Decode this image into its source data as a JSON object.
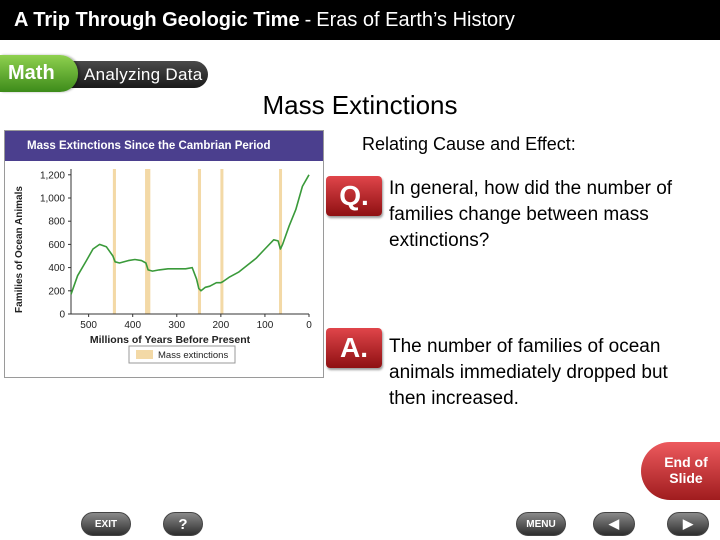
{
  "header": {
    "title_bold": "A Trip Through Geologic Time",
    "separator": "-",
    "title_rest": "Eras of Earth’s History"
  },
  "banner": {
    "math": "Math",
    "analyzing": "Analyzing Data"
  },
  "slide_title": "Mass Extinctions",
  "chart_data": {
    "type": "line",
    "title": "Mass Extinctions Since the Cambrian Period",
    "xlabel": "Millions of Years Before Present",
    "ylabel": "Families of Ocean Animals",
    "x_ticks": [
      500,
      400,
      300,
      200,
      100,
      0
    ],
    "y_ticks": [
      0,
      200,
      400,
      600,
      800,
      1000,
      1200
    ],
    "y_tick_labels": [
      "0",
      "200",
      "400",
      "600",
      "800",
      "1,000",
      "1,200"
    ],
    "xlim": [
      540,
      0
    ],
    "ylim": [
      0,
      1250
    ],
    "legend_label": "Mass extinctions",
    "legend_position": "bottom",
    "extinctions": [
      {
        "start": 445,
        "end": 438
      },
      {
        "start": 372,
        "end": 360
      },
      {
        "start": 252,
        "end": 245
      },
      {
        "start": 201,
        "end": 198
      },
      {
        "start": 68,
        "end": 64
      }
    ],
    "series": [
      {
        "x": [
          540,
          525,
          505,
          490,
          475,
          460,
          445,
          440,
          430,
          410,
          395,
          380,
          370,
          365,
          355,
          340,
          320,
          300,
          280,
          265,
          255,
          250,
          245,
          235,
          225,
          210,
          200,
          195,
          180,
          160,
          140,
          120,
          100,
          80,
          70,
          65,
          60,
          45,
          30,
          15,
          0
        ],
        "y": [
          170,
          330,
          460,
          560,
          600,
          580,
          500,
          450,
          440,
          460,
          470,
          460,
          440,
          380,
          370,
          380,
          390,
          390,
          390,
          400,
          300,
          220,
          200,
          230,
          240,
          270,
          270,
          280,
          320,
          360,
          420,
          480,
          560,
          640,
          630,
          560,
          600,
          760,
          900,
          1100,
          1200
        ]
      }
    ],
    "colors": {
      "line": "#3a9a3a",
      "band": "#f3d9a6",
      "title_bg": "#4b3f8e"
    }
  },
  "relating": "Relating Cause and Effect:",
  "q": {
    "badge": "Q.",
    "text": "In general, how did the number of families change between mass extinctions?"
  },
  "a": {
    "badge": "A.",
    "text": "The number of families of ocean animals immediately dropped but then increased."
  },
  "end_button": {
    "line1": "End of",
    "line2": "Slide"
  },
  "nav": {
    "exit": "EXIT",
    "help": "?",
    "menu": "MENU",
    "back": "◀",
    "next": "▶"
  }
}
